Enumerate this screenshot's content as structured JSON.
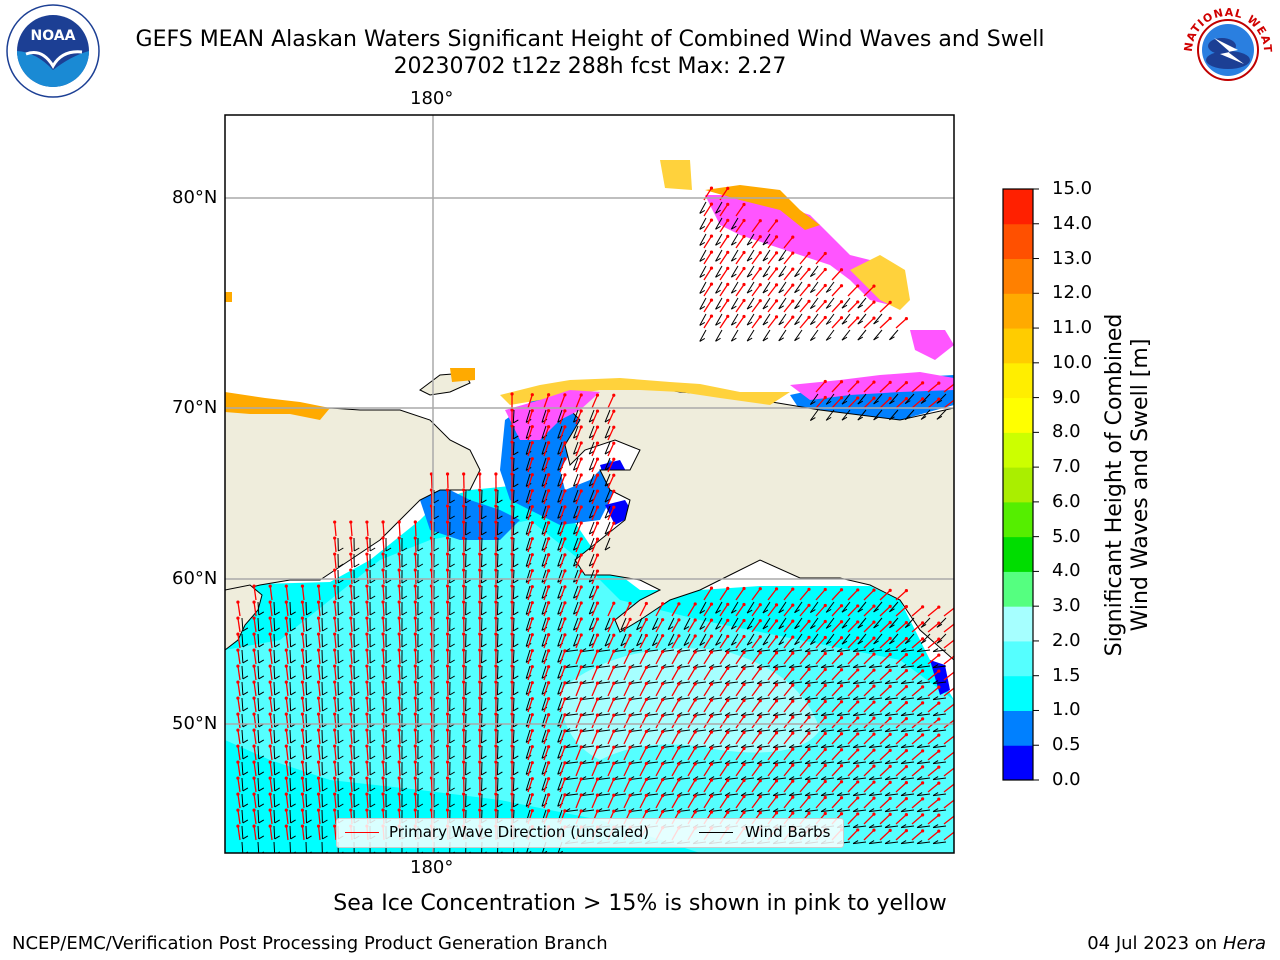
{
  "title": {
    "line1": "GEFS MEAN Alaskan Waters Significant Height of Combined Wind Waves and Swell",
    "line2": "20230702 t12z 288h fcst   Max: 2.27"
  },
  "logos": {
    "noaa": {
      "icon": "noaa-logo",
      "text": "NOAA"
    },
    "nws": {
      "icon": "nws-logo",
      "text": "NATIONAL WEATHER SERVICE"
    }
  },
  "map": {
    "top_lon_label": "180°",
    "bottom_lon_label": "180°",
    "lat_labels": [
      "80°N",
      "70°N",
      "60°N",
      "50°N"
    ],
    "colors": {
      "land": "#efeddc",
      "ocean_primary": "#00ffff",
      "ocean_mid": "#55ffff",
      "ocean_high": "#a6ffff",
      "shallow": "#0080ff",
      "deep": "#0000ff",
      "ice_pink": "#ff55ff",
      "ice_orange": "#ffaa00",
      "ice_yellow": "#ffd23c",
      "wave_arrow": "#ff0000",
      "wind_barb": "#000000",
      "grid": "#aaaaaa"
    }
  },
  "legend": {
    "wave_label": "Primary Wave Direction (unscaled)",
    "wind_label": "Wind Barbs"
  },
  "colorbar": {
    "title_line1": "Significant Height of Combined",
    "title_line2": "Wind Waves and Swell [m]",
    "ticks": [
      "15.0",
      "14.0",
      "13.0",
      "12.0",
      "11.0",
      "10.0",
      "9.0",
      "8.0",
      "7.0",
      "6.0",
      "5.0",
      "4.0",
      "3.0",
      "2.0",
      "1.5",
      "1.0",
      "0.5",
      "0.0"
    ],
    "colors": [
      "#0000ff",
      "#0080ff",
      "#00ffff",
      "#55ffff",
      "#a6ffff",
      "#55ff80",
      "#00dd00",
      "#55ee00",
      "#aaee00",
      "#ccff00",
      "#ffff00",
      "#ffee00",
      "#ffcc00",
      "#ffaa00",
      "#ff8000",
      "#ff5000",
      "#ff2000"
    ]
  },
  "footnote": "Sea Ice Concentration > 15% is shown in pink to yellow",
  "credits": {
    "left": "NCEP/EMC/Verification Post Processing Product Generation Branch",
    "right_date": "04 Jul 2023 on ",
    "right_host": "Hera"
  }
}
